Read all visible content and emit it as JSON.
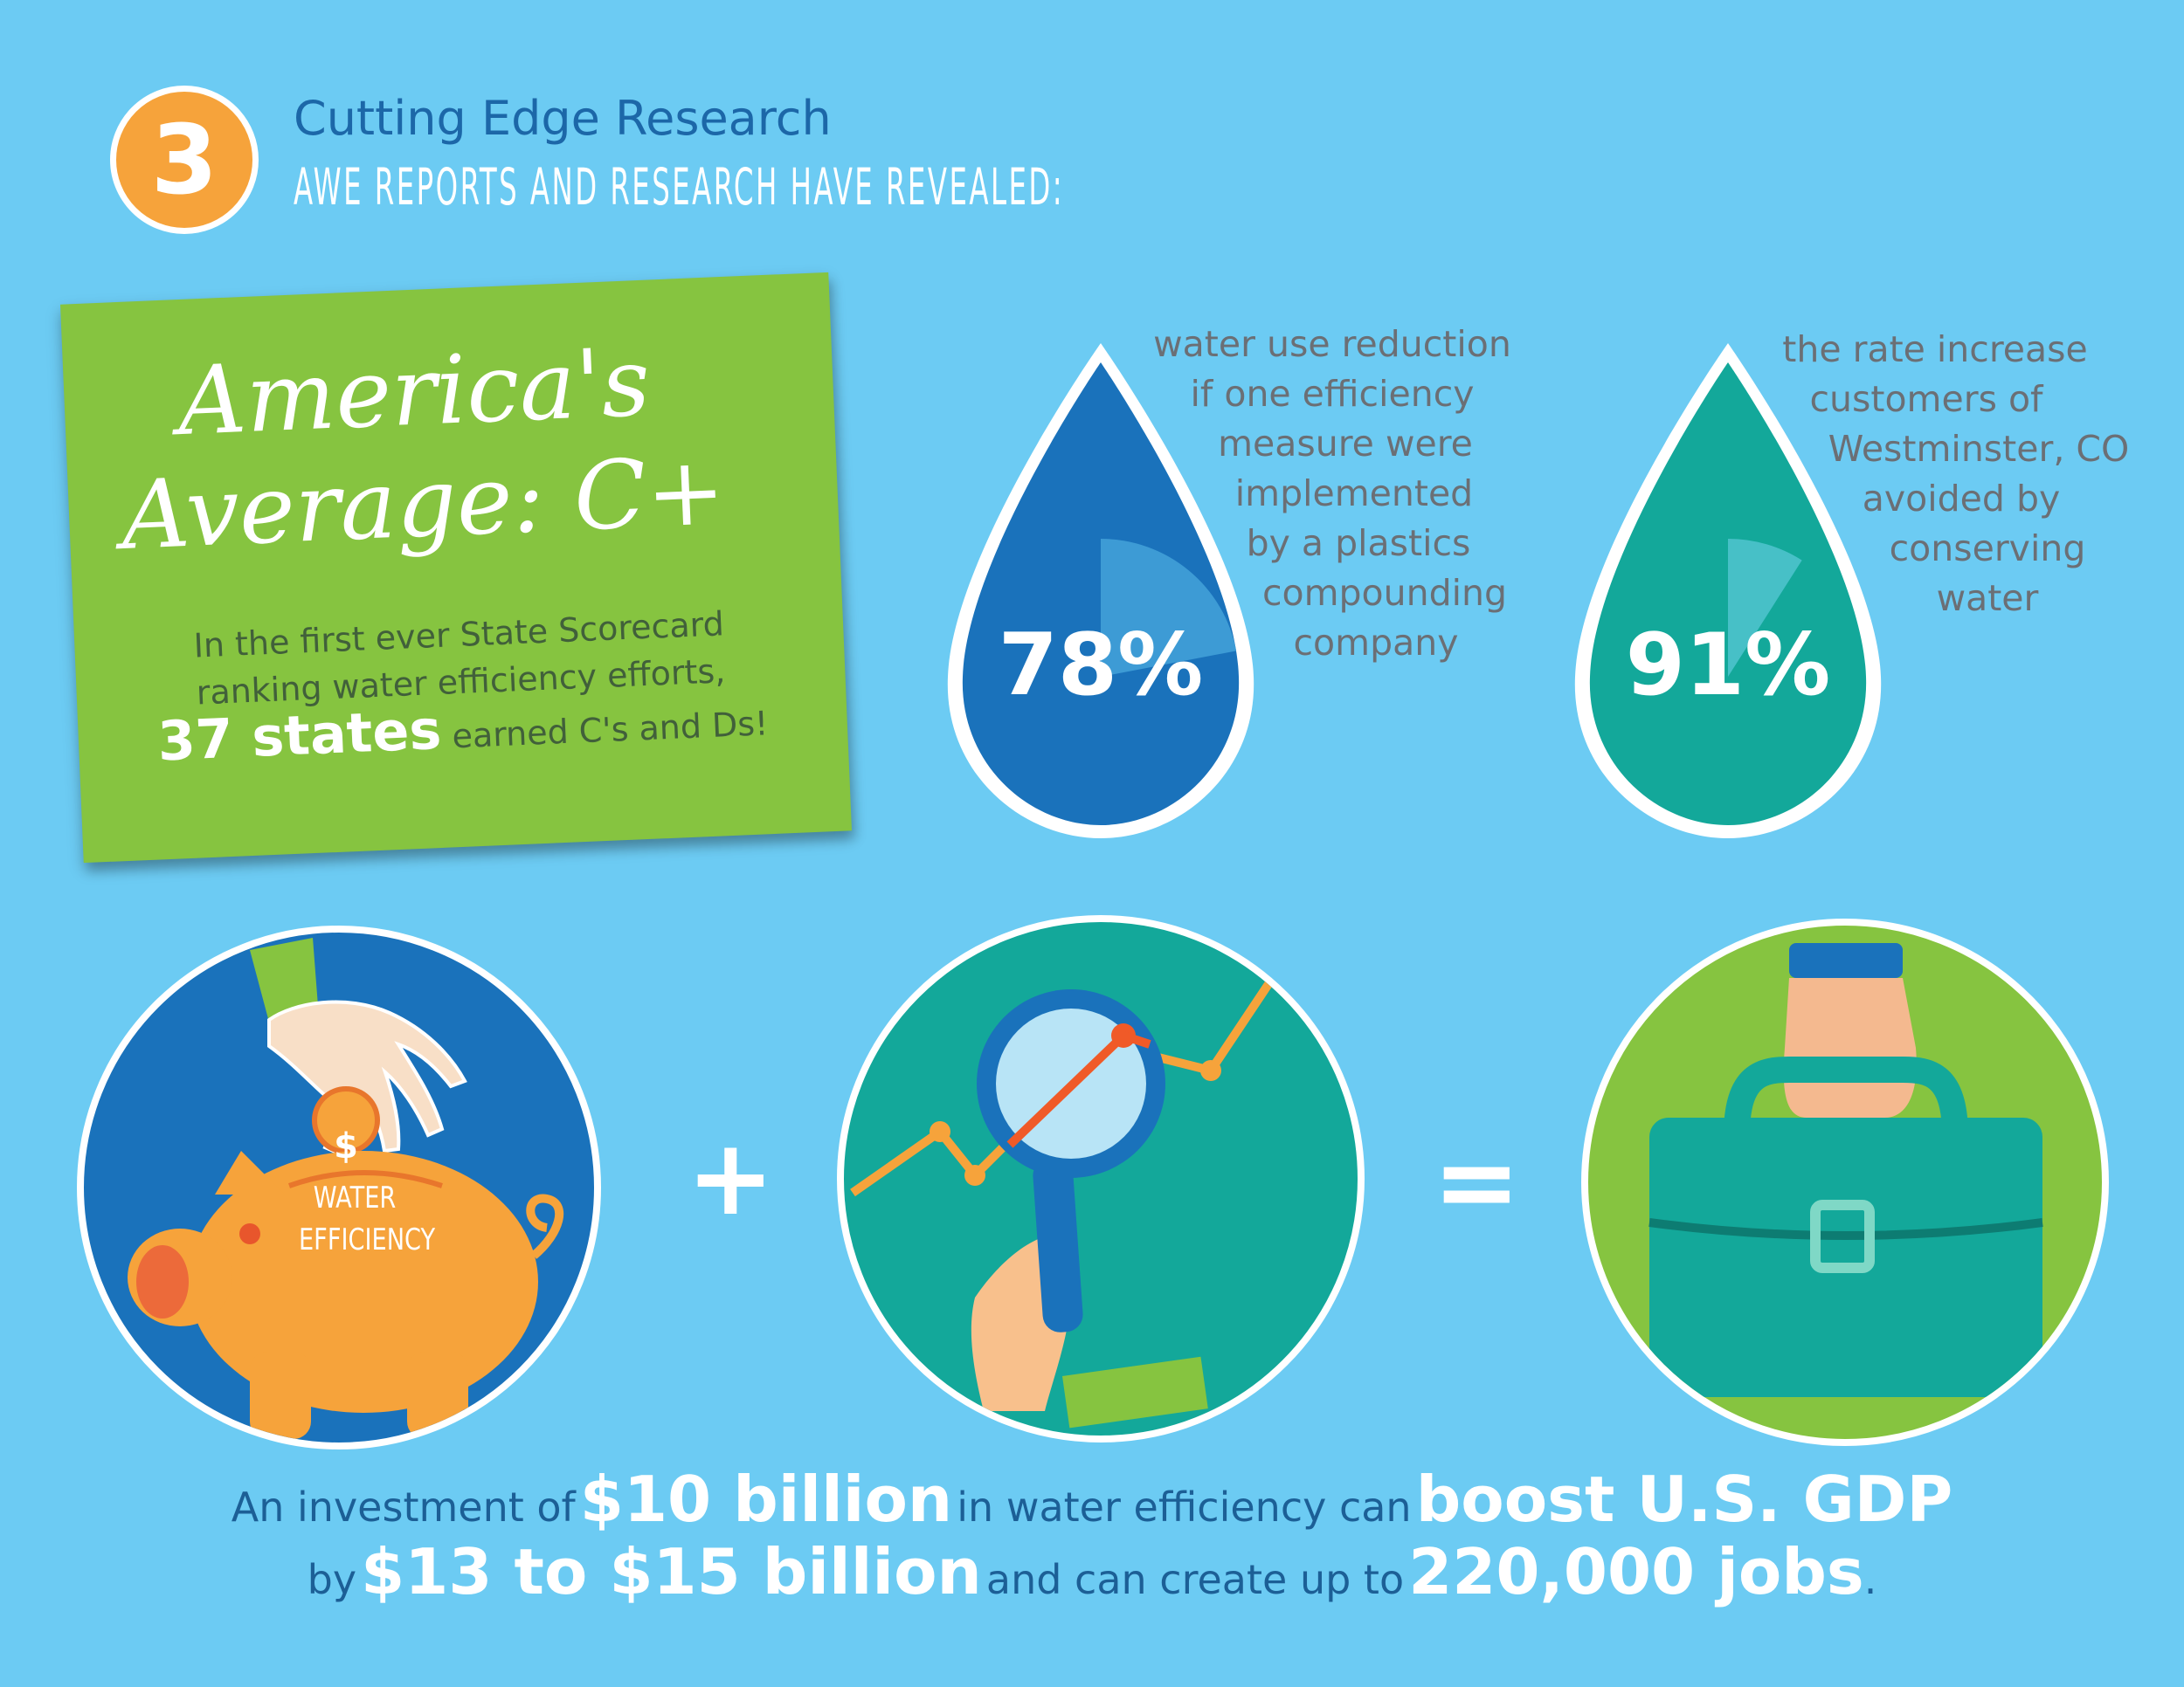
{
  "header": {
    "number": "3",
    "title": "Cutting Edge Research",
    "subtitle": "AWE REPORTS AND RESEARCH HAVE REVEALED:"
  },
  "scorecard": {
    "title_line1": "America's",
    "title_line2": "Average: C+",
    "text_line1": "In the first ever State Scorecard",
    "text_line2": "ranking water efficiency efforts,",
    "highlight": "37 states",
    "text_line3": "earned C's and Ds!"
  },
  "stat1": {
    "percent": "78%",
    "fraction": 0.78,
    "desc": [
      "water use reduction",
      "if one efficiency",
      "measure were",
      "implemented",
      "by a plastics",
      "compounding",
      "company"
    ]
  },
  "stat2": {
    "percent": "91%",
    "fraction": 0.91,
    "desc": [
      "the rate increase",
      "customers of",
      "Westminster, CO",
      "avoided by",
      "conserving",
      "water"
    ]
  },
  "illustration": {
    "coin_symbol": "$",
    "piggy_label_line1": "WATER",
    "piggy_label_line2": "EFFICIENCY",
    "plus": "+",
    "equals": "="
  },
  "footer": {
    "l1_a": "An investment of",
    "l1_b": "$10 billion",
    "l1_c": "in water efficiency  can",
    "l1_d": "boost U.S. GDP",
    "l2_a": "by",
    "l2_b": "$13 to $15 billion",
    "l2_c": "and can create up to",
    "l2_d": "220,000 jobs",
    "l2_e": "."
  },
  "colors": {
    "background": "#6ccbf3",
    "orange": "#f6a33b",
    "green": "#86c440",
    "blue_drop": "#1a72bb",
    "teal_drop": "#13a89a"
  }
}
